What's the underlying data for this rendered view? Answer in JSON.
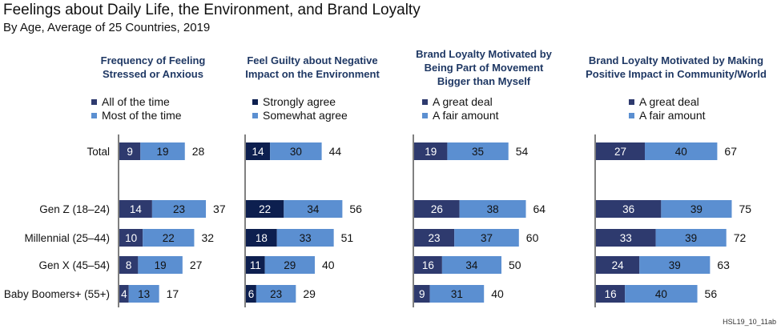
{
  "header": {
    "title": "Feelings about Daily Life, the Environment, and Brand Loyalty",
    "subtitle": "By Age, Average of 25 Countries, 2019",
    "code": "HSL19_10_11ab"
  },
  "colors": {
    "dark_series_panel1": "#2e3a6e",
    "dark_series_panel2": "#0d1f4f",
    "dark_series_panel3": "#2e3a6e",
    "dark_series_panel4": "#2e3a6e",
    "light_series": "#5b8fd1",
    "title_text": "#1f3864"
  },
  "chart_data": [
    {
      "type": "bar",
      "orientation": "horizontal",
      "stacked": true,
      "title": "Frequency of Feeling Stressed or Anxious",
      "categories": [
        "Total",
        "Gen Z (18–24)",
        "Millennial (25–44)",
        "Gen X (45–54)",
        "Baby Boomers+ (55+)"
      ],
      "series": [
        {
          "name": "All of the time",
          "values": [
            9,
            14,
            10,
            8,
            4
          ]
        },
        {
          "name": "Most of the time",
          "values": [
            19,
            23,
            22,
            19,
            13
          ]
        }
      ],
      "totals": [
        28,
        37,
        32,
        27,
        17
      ],
      "legend_position": "top"
    },
    {
      "type": "bar",
      "orientation": "horizontal",
      "stacked": true,
      "title": "Feel Guilty about Negative Impact on the Environment",
      "categories": [
        "Total",
        "Gen Z (18–24)",
        "Millennial (25–44)",
        "Gen X (45–54)",
        "Baby Boomers+ (55+)"
      ],
      "series": [
        {
          "name": "Strongly agree",
          "values": [
            14,
            22,
            18,
            11,
            6
          ]
        },
        {
          "name": "Somewhat agree",
          "values": [
            30,
            34,
            33,
            29,
            23
          ]
        }
      ],
      "totals": [
        44,
        56,
        51,
        40,
        29
      ],
      "legend_position": "top"
    },
    {
      "type": "bar",
      "orientation": "horizontal",
      "stacked": true,
      "title": "Brand Loyalty Motivated by Being Part of Movement Bigger than Myself",
      "categories": [
        "Total",
        "Gen Z (18–24)",
        "Millennial (25–44)",
        "Gen X (45–54)",
        "Baby Boomers+ (55+)"
      ],
      "series": [
        {
          "name": "A great deal",
          "values": [
            19,
            26,
            23,
            16,
            9
          ]
        },
        {
          "name": "A fair amount",
          "values": [
            35,
            38,
            37,
            34,
            31
          ]
        }
      ],
      "totals": [
        54,
        64,
        60,
        50,
        40
      ],
      "legend_position": "top"
    },
    {
      "type": "bar",
      "orientation": "horizontal",
      "stacked": true,
      "title": "Brand Loyalty Motivated by Making Positive Impact in Community/World",
      "categories": [
        "Total",
        "Gen Z (18–24)",
        "Millennial (25–44)",
        "Gen X (45–54)",
        "Baby Boomers+ (55+)"
      ],
      "series": [
        {
          "name": "A great deal",
          "values": [
            27,
            36,
            33,
            24,
            16
          ]
        },
        {
          "name": "A fair amount",
          "values": [
            40,
            39,
            39,
            39,
            40
          ]
        }
      ],
      "totals": [
        67,
        75,
        72,
        63,
        56
      ],
      "legend_position": "top"
    }
  ]
}
